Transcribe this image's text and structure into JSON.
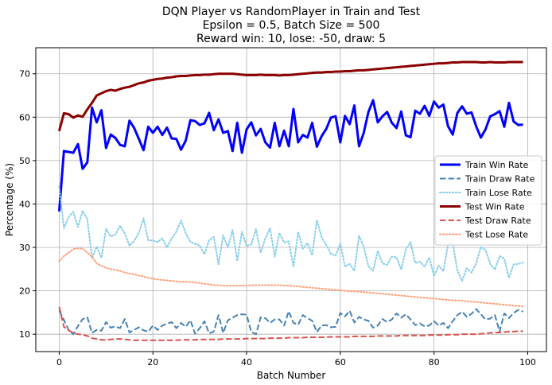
{
  "chart_data": {
    "type": "line",
    "title_lines": [
      "DQN Player vs RandomPlayer in Train and Test",
      "Epsilon = 0.5, Batch Size = 500",
      "Reward win: 10, lose: -50, draw: 5"
    ],
    "xlabel": "Batch Number",
    "ylabel": "Percentage (%)",
    "xlim": [
      -5,
      104
    ],
    "ylim": [
      6,
      76
    ],
    "x_ticks": [
      0,
      20,
      40,
      60,
      80,
      100
    ],
    "y_ticks": [
      10,
      20,
      30,
      40,
      50,
      60,
      70
    ],
    "x_tick_labels": [
      "0",
      "20",
      "40",
      "60",
      "80",
      "100"
    ],
    "y_tick_labels": [
      "10",
      "20",
      "30",
      "40",
      "50",
      "60",
      "70"
    ],
    "grid": true,
    "legend_position": "center-right",
    "series": [
      {
        "name": "Train Win Rate",
        "color": "#0000ff",
        "style": "solid",
        "width": 3,
        "values": [
          38.3,
          52.2,
          52.0,
          51.8,
          53.8,
          48.1,
          49.6,
          62.2,
          58.8,
          61.6,
          52.9,
          56.0,
          55.2,
          53.6,
          53.3,
          59.2,
          57.5,
          55.0,
          52.4,
          57.8,
          56.4,
          57.8,
          55.9,
          57.6,
          55.1,
          55.0,
          52.5,
          54.6,
          59.3,
          59.1,
          58.2,
          58.6,
          61.0,
          57.0,
          59.5,
          56.4,
          56.8,
          52.2,
          58.7,
          51.8,
          57.2,
          58.8,
          55.8,
          57.3,
          54.2,
          53.0,
          58.7,
          53.3,
          56.9,
          53.3,
          61.9,
          54.2,
          55.9,
          55.3,
          58.7,
          53.2,
          55.6,
          57.3,
          59.9,
          60.2,
          54.2,
          60.3,
          58.4,
          62.7,
          53.3,
          56.4,
          61.2,
          63.9,
          58.8,
          60.2,
          61.2,
          58.7,
          57.5,
          61.3,
          55.8,
          55.4,
          61.5,
          60.8,
          62.6,
          60.3,
          63.6,
          62.2,
          62.9,
          57.9,
          56.0,
          61.0,
          62.5,
          60.8,
          61.1,
          57.9,
          55.3,
          57.2,
          60.2,
          60.7,
          61.4,
          57.8,
          63.3,
          59.0,
          58.2,
          58.3
        ]
      },
      {
        "name": "Train Draw Rate",
        "color": "#4682b4",
        "style": "dashed",
        "width": 2,
        "values": [
          15.5,
          13.3,
          11.0,
          10.0,
          11.9,
          13.5,
          13.9,
          10.3,
          11.0,
          10.8,
          12.8,
          11.5,
          11.8,
          11.4,
          13.5,
          10.4,
          11.0,
          11.6,
          10.9,
          10.6,
          12.0,
          11.0,
          12.0,
          12.4,
          12.8,
          11.4,
          12.6,
          11.7,
          13.2,
          10.1,
          11.4,
          13.0,
          10.2,
          10.6,
          14.4,
          10.3,
          13.2,
          13.8,
          14.4,
          14.6,
          14.5,
          10.5,
          10.0,
          13.9,
          13.7,
          12.6,
          13.4,
          13.4,
          12.0,
          15.3,
          12.6,
          12.2,
          14.4,
          13.7,
          13.1,
          10.5,
          12.0,
          12.1,
          11.6,
          11.7,
          14.9,
          14.1,
          15.4,
          12.7,
          14.0,
          13.4,
          13.1,
          11.5,
          12.0,
          13.5,
          12.8,
          13.4,
          14.8,
          13.8,
          14.6,
          13.4,
          12.1,
          12.5,
          11.8,
          12.0,
          13.0,
          12.0,
          12.6,
          11.4,
          13.0,
          14.4,
          15.2,
          14.0,
          14.7,
          15.8,
          14.6,
          13.4,
          13.6,
          14.4,
          10.6,
          14.8,
          13.7,
          14.9,
          15.6,
          15.2
        ]
      },
      {
        "name": "Train Lose Rate",
        "color": "#87ceeb",
        "style": "dotted",
        "width": 2,
        "values": [
          44.0,
          34.4,
          37.0,
          38.2,
          34.7,
          38.4,
          36.5,
          27.5,
          30.2,
          27.6,
          34.3,
          32.5,
          33.0,
          35.0,
          33.2,
          30.4,
          31.5,
          33.4,
          36.7,
          31.6,
          31.6,
          31.2,
          32.1,
          30.0,
          32.1,
          33.6,
          36.2,
          33.3,
          31.3,
          30.8,
          30.4,
          28.4,
          31.7,
          32.4,
          26.1,
          32.8,
          30.0,
          34.0,
          26.9,
          33.6,
          30.3,
          30.7,
          34.2,
          28.8,
          32.1,
          34.4,
          27.9,
          33.3,
          31.1,
          31.4,
          25.5,
          33.6,
          29.7,
          31.0,
          28.2,
          36.3,
          32.4,
          30.6,
          28.5,
          28.1,
          30.9,
          25.6,
          26.2,
          24.6,
          32.7,
          30.2,
          25.7,
          24.6,
          29.2,
          26.3,
          26.0,
          27.9,
          27.7,
          24.9,
          29.6,
          31.2,
          26.4,
          26.7,
          25.6,
          27.7,
          23.4,
          25.8,
          24.5,
          30.7,
          31.0,
          24.6,
          22.3,
          25.2,
          24.2,
          26.3,
          30.1,
          29.4,
          26.2,
          24.9,
          28.0,
          27.4,
          23.0,
          26.1,
          26.2,
          26.5
        ]
      },
      {
        "name": "Test Win Rate",
        "color": "#8b0000",
        "style": "solid",
        "width": 3,
        "values": [
          56.8,
          60.9,
          60.7,
          59.9,
          60.4,
          60.1,
          61.8,
          63.3,
          65.0,
          65.5,
          66.0,
          66.3,
          66.1,
          66.5,
          66.8,
          67.0,
          67.4,
          67.8,
          68.0,
          68.4,
          68.6,
          68.8,
          68.9,
          69.1,
          69.2,
          69.4,
          69.5,
          69.5,
          69.6,
          69.7,
          69.7,
          69.8,
          69.8,
          69.9,
          70.0,
          70.0,
          70.0,
          70.0,
          69.9,
          69.8,
          69.7,
          69.7,
          69.7,
          69.8,
          69.7,
          69.7,
          69.7,
          69.6,
          69.7,
          69.7,
          69.8,
          69.9,
          70.0,
          70.1,
          70.2,
          70.3,
          70.3,
          70.4,
          70.4,
          70.5,
          70.5,
          70.6,
          70.6,
          70.7,
          70.8,
          70.8,
          70.9,
          71.0,
          71.1,
          71.2,
          71.3,
          71.4,
          71.5,
          71.6,
          71.7,
          71.8,
          71.9,
          72.0,
          72.1,
          72.2,
          72.3,
          72.4,
          72.4,
          72.5,
          72.6,
          72.6,
          72.7,
          72.7,
          72.7,
          72.7,
          72.6,
          72.6,
          72.7,
          72.6,
          72.6,
          72.6,
          72.7,
          72.7,
          72.7,
          72.7
        ]
      },
      {
        "name": "Test Draw Rate",
        "color": "#d9534f",
        "style": "dashed",
        "width": 2,
        "values": [
          16.3,
          11.7,
          10.9,
          10.3,
          10.0,
          9.9,
          9.6,
          9.1,
          8.9,
          8.7,
          8.7,
          8.8,
          8.9,
          8.9,
          8.8,
          8.7,
          8.6,
          8.6,
          8.6,
          8.6,
          8.6,
          8.6,
          8.6,
          8.6,
          8.6,
          8.6,
          8.7,
          8.7,
          8.7,
          8.7,
          8.8,
          8.8,
          8.8,
          8.8,
          8.8,
          8.9,
          8.9,
          8.9,
          8.9,
          8.9,
          9.0,
          9.0,
          9.0,
          9.0,
          9.0,
          9.1,
          9.1,
          9.1,
          9.1,
          9.2,
          9.2,
          9.2,
          9.2,
          9.3,
          9.3,
          9.3,
          9.3,
          9.3,
          9.4,
          9.4,
          9.4,
          9.4,
          9.4,
          9.5,
          9.5,
          9.5,
          9.5,
          9.5,
          9.6,
          9.6,
          9.6,
          9.6,
          9.6,
          9.7,
          9.7,
          9.7,
          9.7,
          9.7,
          9.7,
          9.8,
          9.8,
          9.8,
          9.8,
          9.9,
          9.9,
          9.9,
          10.0,
          10.0,
          10.0,
          10.0,
          10.1,
          10.2,
          10.3,
          10.4,
          10.4,
          10.5,
          10.6,
          10.6,
          10.7,
          10.7
        ]
      },
      {
        "name": "Test Lose Rate",
        "color": "#ffa07a",
        "style": "dotted",
        "width": 2,
        "values": [
          26.8,
          28.0,
          28.8,
          29.6,
          29.8,
          29.7,
          28.8,
          27.8,
          26.3,
          25.8,
          25.3,
          25.0,
          24.8,
          24.6,
          24.2,
          24.0,
          23.8,
          23.5,
          23.3,
          23.0,
          22.8,
          22.6,
          22.5,
          22.4,
          22.3,
          22.2,
          22.1,
          22.1,
          22.0,
          21.9,
          21.8,
          21.6,
          21.5,
          21.3,
          21.3,
          21.2,
          21.2,
          21.2,
          21.2,
          21.2,
          21.2,
          21.3,
          21.3,
          21.3,
          21.3,
          21.3,
          21.3,
          21.3,
          21.2,
          21.2,
          21.1,
          21.0,
          20.9,
          20.8,
          20.7,
          20.6,
          20.5,
          20.4,
          20.3,
          20.2,
          20.1,
          20.0,
          19.9,
          19.9,
          19.8,
          19.7,
          19.6,
          19.5,
          19.4,
          19.3,
          19.2,
          19.1,
          19.0,
          18.9,
          18.8,
          18.7,
          18.6,
          18.5,
          18.4,
          18.3,
          18.2,
          18.1,
          18.0,
          17.9,
          17.8,
          17.8,
          17.7,
          17.6,
          17.5,
          17.4,
          17.3,
          17.2,
          17.1,
          17.0,
          16.9,
          16.8,
          16.7,
          16.6,
          16.5,
          16.4
        ]
      }
    ]
  }
}
